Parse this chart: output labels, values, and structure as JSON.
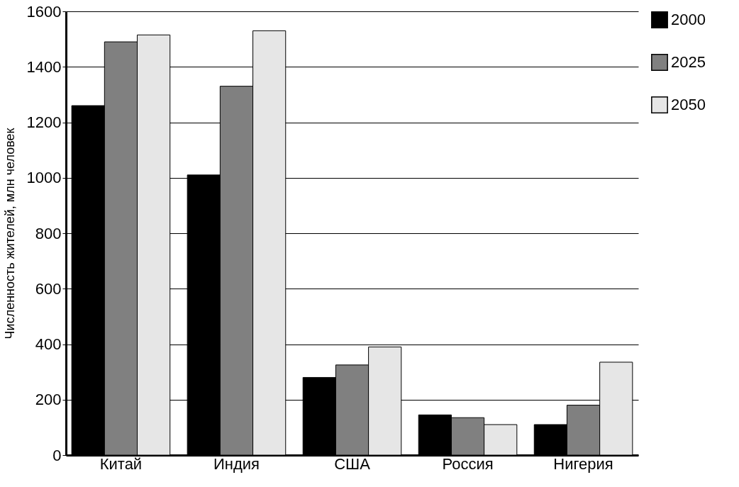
{
  "chart_data": {
    "type": "bar",
    "ylabel": "Численность жителей, млн человек",
    "categories": [
      "Китай",
      "Индия",
      "США",
      "Россия",
      "Нигерия"
    ],
    "series": [
      {
        "name": "2000",
        "color": "#000000",
        "values": [
          1260,
          1010,
          280,
          145,
          110
        ]
      },
      {
        "name": "2025",
        "color": "#808080",
        "values": [
          1490,
          1330,
          325,
          135,
          180
        ]
      },
      {
        "name": "2050",
        "color": "#e6e6e6",
        "values": [
          1515,
          1530,
          390,
          110,
          335
        ]
      }
    ],
    "ylim": [
      0,
      1600
    ],
    "yticks": [
      0,
      200,
      400,
      600,
      800,
      1000,
      1200,
      1400,
      1600
    ],
    "grid": "y",
    "legend": "right"
  }
}
